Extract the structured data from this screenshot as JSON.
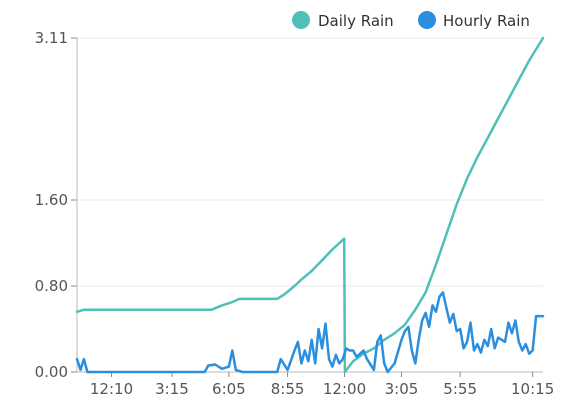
{
  "chart_data": {
    "type": "line",
    "title": "",
    "xlabel": "",
    "ylabel": "",
    "x_tick_labels": [
      "12:10",
      "3:15",
      "6:05",
      "8:55",
      "12:00",
      "3:05",
      "5:55",
      "10:15"
    ],
    "x_tick_positions": [
      1.0,
      2.75,
      4.4,
      6.1,
      7.75,
      9.4,
      11.1,
      13.2
    ],
    "xlim": [
      0,
      13.5
    ],
    "y_ticks": [
      0.0,
      0.8,
      1.6,
      3.11
    ],
    "y_tick_labels": [
      "0.00",
      "0.80",
      "1.60",
      "3.11"
    ],
    "ylim": [
      0,
      3.11
    ],
    "y_scale": "piecewise-linear (tick spacing not proportional)",
    "grid": "horizontal",
    "legend_position": "top-right",
    "series": [
      {
        "name": "Daily Rain",
        "color": "#4fbfb8",
        "points": [
          [
            0.0,
            0.56
          ],
          [
            0.2,
            0.58
          ],
          [
            3.9,
            0.58
          ],
          [
            4.2,
            0.62
          ],
          [
            4.5,
            0.65
          ],
          [
            4.7,
            0.68
          ],
          [
            5.8,
            0.68
          ],
          [
            6.0,
            0.72
          ],
          [
            6.3,
            0.8
          ],
          [
            6.5,
            0.86
          ],
          [
            6.8,
            0.94
          ],
          [
            7.1,
            1.04
          ],
          [
            7.4,
            1.14
          ],
          [
            7.74,
            1.24
          ],
          [
            7.76,
            0.0
          ],
          [
            8.0,
            0.1
          ],
          [
            8.3,
            0.17
          ],
          [
            8.6,
            0.22
          ],
          [
            8.9,
            0.3
          ],
          [
            9.2,
            0.36
          ],
          [
            9.5,
            0.44
          ],
          [
            9.8,
            0.58
          ],
          [
            10.1,
            0.74
          ],
          [
            10.4,
            1.0
          ],
          [
            10.7,
            1.28
          ],
          [
            11.0,
            1.56
          ],
          [
            11.3,
            1.8
          ],
          [
            11.6,
            2.0
          ],
          [
            11.9,
            2.18
          ],
          [
            12.2,
            2.36
          ],
          [
            12.5,
            2.54
          ],
          [
            12.8,
            2.72
          ],
          [
            13.1,
            2.9
          ],
          [
            13.5,
            3.11
          ]
        ]
      },
      {
        "name": "Hourly Rain",
        "color": "#2b8fe0",
        "points": [
          [
            0.0,
            0.12
          ],
          [
            0.1,
            0.02
          ],
          [
            0.2,
            0.12
          ],
          [
            0.3,
            0.0
          ],
          [
            3.7,
            0.0
          ],
          [
            3.8,
            0.06
          ],
          [
            4.0,
            0.07
          ],
          [
            4.2,
            0.03
          ],
          [
            4.4,
            0.05
          ],
          [
            4.5,
            0.2
          ],
          [
            4.6,
            0.02
          ],
          [
            4.8,
            0.0
          ],
          [
            5.8,
            0.0
          ],
          [
            5.9,
            0.12
          ],
          [
            6.1,
            0.02
          ],
          [
            6.3,
            0.2
          ],
          [
            6.4,
            0.28
          ],
          [
            6.5,
            0.08
          ],
          [
            6.6,
            0.2
          ],
          [
            6.7,
            0.1
          ],
          [
            6.8,
            0.3
          ],
          [
            6.9,
            0.08
          ],
          [
            7.0,
            0.4
          ],
          [
            7.1,
            0.22
          ],
          [
            7.2,
            0.45
          ],
          [
            7.3,
            0.12
          ],
          [
            7.4,
            0.05
          ],
          [
            7.5,
            0.16
          ],
          [
            7.6,
            0.08
          ],
          [
            7.7,
            0.12
          ],
          [
            7.8,
            0.22
          ],
          [
            7.9,
            0.2
          ],
          [
            8.0,
            0.2
          ],
          [
            8.1,
            0.14
          ],
          [
            8.3,
            0.2
          ],
          [
            8.4,
            0.12
          ],
          [
            8.6,
            0.02
          ],
          [
            8.7,
            0.28
          ],
          [
            8.8,
            0.34
          ],
          [
            8.9,
            0.08
          ],
          [
            9.0,
            0.0
          ],
          [
            9.2,
            0.08
          ],
          [
            9.4,
            0.3
          ],
          [
            9.5,
            0.38
          ],
          [
            9.6,
            0.42
          ],
          [
            9.7,
            0.2
          ],
          [
            9.8,
            0.08
          ],
          [
            9.9,
            0.3
          ],
          [
            10.0,
            0.48
          ],
          [
            10.1,
            0.55
          ],
          [
            10.2,
            0.42
          ],
          [
            10.3,
            0.62
          ],
          [
            10.4,
            0.56
          ],
          [
            10.5,
            0.7
          ],
          [
            10.6,
            0.74
          ],
          [
            10.7,
            0.6
          ],
          [
            10.8,
            0.46
          ],
          [
            10.9,
            0.54
          ],
          [
            11.0,
            0.38
          ],
          [
            11.1,
            0.4
          ],
          [
            11.2,
            0.22
          ],
          [
            11.3,
            0.28
          ],
          [
            11.4,
            0.46
          ],
          [
            11.5,
            0.2
          ],
          [
            11.6,
            0.26
          ],
          [
            11.7,
            0.18
          ],
          [
            11.8,
            0.3
          ],
          [
            11.9,
            0.24
          ],
          [
            12.0,
            0.4
          ],
          [
            12.1,
            0.22
          ],
          [
            12.2,
            0.32
          ],
          [
            12.4,
            0.28
          ],
          [
            12.5,
            0.46
          ],
          [
            12.6,
            0.36
          ],
          [
            12.7,
            0.48
          ],
          [
            12.8,
            0.28
          ],
          [
            12.9,
            0.2
          ],
          [
            13.0,
            0.26
          ],
          [
            13.1,
            0.17
          ],
          [
            13.2,
            0.2
          ],
          [
            13.3,
            0.52
          ],
          [
            13.5,
            0.52
          ]
        ]
      }
    ]
  }
}
